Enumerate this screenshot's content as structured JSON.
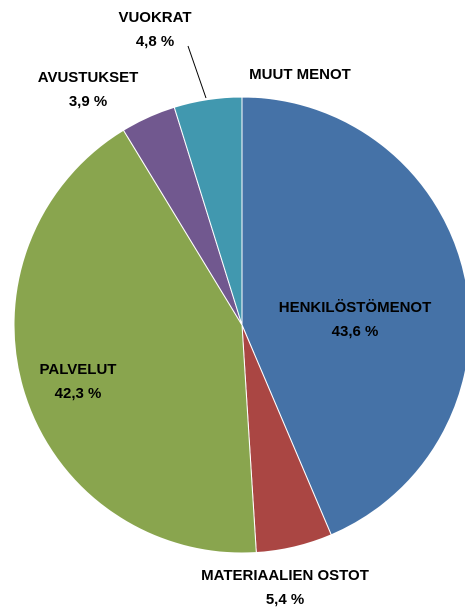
{
  "chart_data": {
    "type": "pie",
    "categories": [
      "HENKILÖSTÖMENOT",
      "MATERIAALIEN OSTOT",
      "PALVELUT",
      "AVUSTUKSET",
      "VUOKRAT",
      "MUUT MENOT"
    ],
    "values": [
      43.6,
      5.4,
      42.3,
      3.9,
      4.8,
      0
    ],
    "value_labels": [
      "43,6 %",
      "5,4 %",
      "42,3 %",
      "3,9 %",
      "4,8 %",
      null
    ],
    "colors": [
      "#4572a7",
      "#aa4643",
      "#89a54e",
      "#71588f",
      "#4198af",
      "#db843d"
    ]
  }
}
